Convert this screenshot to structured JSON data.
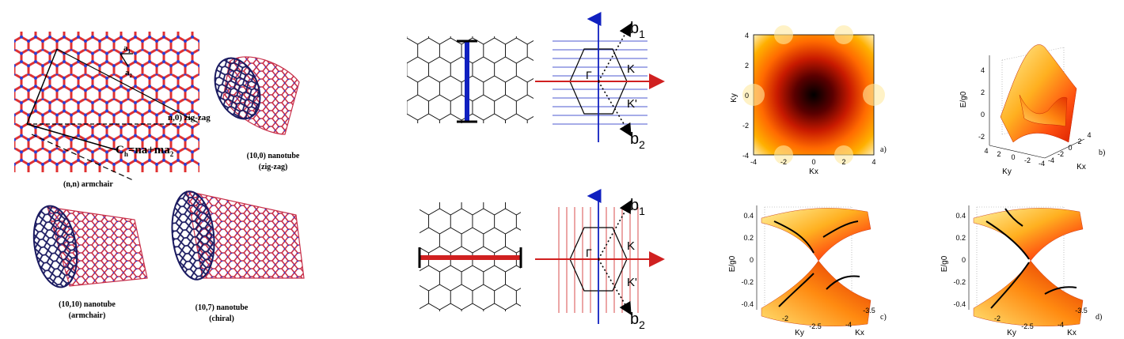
{
  "left": {
    "vec_a1": "a",
    "vec_a1_sub": "1",
    "vec_a2": "a",
    "vec_a2_sub": "2",
    "zigzag_label": "n,0) zig-zag",
    "chiral_vector": "C",
    "chiral_vector_sub": "h",
    "chiral_vector_rest": "=na",
    "chiral_vector_rest2": "+ma",
    "chiral_vector_sub2": "2",
    "armchair_label": "(n,n) armchair",
    "tube1_line1": "(10,0) nanotube",
    "tube1_line2": "(zig-zag)",
    "tube2_line1": "(10,10) nanotube",
    "tube2_line2": "(armchair)",
    "tube3_line1": "(10,7) nanotube",
    "tube3_line2": "(chiral)"
  },
  "middle": {
    "top": {
      "b1": "b",
      "b1_sub": "1",
      "b2": "b",
      "b2_sub": "2",
      "gamma": "Γ",
      "k": "K",
      "kprime": "K'"
    },
    "bottom": {
      "b1": "b",
      "b1_sub": "1",
      "b2": "b",
      "b2_sub": "2",
      "gamma": "Γ",
      "k": "K",
      "kprime": "K'"
    }
  },
  "right": {
    "a": {
      "tag": "a)",
      "xlabel": "Kx",
      "ylabel": "Ky",
      "xticks": [
        "-4",
        "-2",
        "0",
        "2",
        "4"
      ],
      "yticks": [
        "4",
        "2",
        "0",
        "-2",
        "-4"
      ]
    },
    "b": {
      "tag": "b)",
      "zlabel": "E/g0",
      "ylabel": "Ky",
      "xlabel": "Kx",
      "zticks": [
        "4",
        "2",
        "0",
        "-2"
      ],
      "yticks": [
        "4",
        "2",
        "0",
        "-2",
        "-4"
      ],
      "xticks": [
        "-4",
        "-2",
        "0",
        "2",
        "4"
      ]
    },
    "c": {
      "tag": "c)",
      "zlabel": "E/g0",
      "ylabel": "Ky",
      "xlabel": "Kx",
      "zticks": [
        "0.4",
        "0.2",
        "0",
        "-0.2",
        "-0.4"
      ],
      "yticks": [
        "-2",
        "-2.5"
      ],
      "xticks": [
        "-4",
        "-3.5"
      ]
    },
    "d": {
      "tag": "d)",
      "zlabel": "E/g0",
      "ylabel": "Ky",
      "xlabel": "Kx",
      "zticks": [
        "0.4",
        "0.2",
        "0",
        "-0.2",
        "-0.4"
      ],
      "yticks": [
        "-2",
        "-2.5"
      ],
      "xticks": [
        "-4",
        "-3.5"
      ]
    }
  },
  "colors": {
    "bond_red": "#e03030",
    "atom_blue": "#2a3fd8",
    "zigzag_blue": "#1020c0",
    "armchair_red": "#d02020"
  }
}
